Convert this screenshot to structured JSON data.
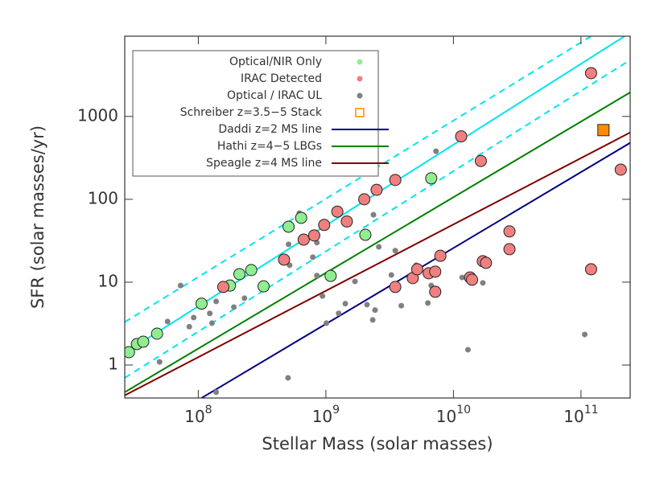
{
  "chart_data": {
    "type": "scatter",
    "xlabel": "Stellar Mass (solar masses)",
    "ylabel": "SFR (solar masses/yr)",
    "xscale": "log",
    "yscale": "log",
    "xlim": [
      26500000,
      243000000000
    ],
    "ylim": [
      0.4,
      9300
    ],
    "xticks": [
      {
        "value": 100000000,
        "label": "10",
        "exponent": "8"
      },
      {
        "value": 1000000000,
        "label": "10",
        "exponent": "9"
      },
      {
        "value": 10000000000,
        "label": "10",
        "exponent": "10"
      },
      {
        "value": 100000000000,
        "label": "10",
        "exponent": "11"
      }
    ],
    "yticks": [
      1,
      10,
      100,
      1000
    ],
    "legend": "upper left",
    "series": [
      {
        "name": "Optical/NIR Only",
        "color": "#90ee90",
        "marker": "circle",
        "size": 7,
        "x": [
          28600000,
          33000000,
          37000000,
          47500000,
          106000000,
          177000000,
          210000000,
          260000000,
          325000000,
          510000000,
          640000000,
          1090000000,
          2040000000,
          6700000000
        ],
        "values": [
          1.43,
          1.79,
          1.91,
          2.39,
          5.5,
          9.1,
          12.5,
          14,
          8.9,
          46.7,
          59.7,
          11.9,
          37.3,
          179
        ]
      },
      {
        "name": "IRAC Detected",
        "color": "#f08080",
        "marker": "circle",
        "size": 7,
        "x": [
          157000000,
          470000000,
          670000000,
          810000000,
          970000000,
          1230000000,
          1460000000,
          2000000000,
          2500000000,
          3500000000,
          3500000000,
          4800000000,
          5200000000,
          6400000000,
          7200000000,
          7200000000,
          7900000000,
          13500000000,
          14000000000,
          11500000000,
          16400000000,
          17000000000,
          18000000000,
          27500000000,
          27500000000,
          120000000000,
          120000000000,
          205000000000
        ],
        "values": [
          8.75,
          18.7,
          32.6,
          36.6,
          49,
          71,
          54,
          100,
          130,
          171,
          8.75,
          11.2,
          14.3,
          12.8,
          7.65,
          13.4,
          20.8,
          11.4,
          10.7,
          575,
          290,
          17.9,
          17.1,
          41,
          25,
          3330,
          14.3,
          228
        ]
      },
      {
        "name": "Optical / IRAC UL",
        "color": "#808080",
        "marker": "dot",
        "size": 3.5,
        "x": [
          49700000,
          57400000,
          72600000,
          85000000,
          92000000,
          123000000,
          128000000,
          138000000,
          190000000,
          230000000,
          510000000,
          520000000,
          620000000,
          790000000,
          850000000,
          850000000,
          940000000,
          1010000000,
          1260000000,
          1420000000,
          1690000000,
          2100000000,
          2330000000,
          2430000000,
          2600000000,
          2360000000,
          3260000000,
          3900000000,
          5100000000,
          6300000000,
          6700000000,
          7300000000,
          11700000000,
          13000000000,
          17000000000,
          107000000000,
          505000000,
          138000000,
          3500000000
        ],
        "values": [
          1.09,
          3.35,
          9.1,
          2.9,
          3.74,
          4.2,
          3.2,
          5.85,
          5.0,
          6.4,
          28.6,
          16,
          68,
          20,
          30,
          12,
          6.8,
          3.2,
          4.2,
          5.5,
          10.2,
          5.35,
          3.5,
          4.6,
          26.7,
          65,
          12.2,
          5.2,
          16,
          5.6,
          9.1,
          380,
          11.4,
          1.53,
          9.8,
          2.34,
          0.7,
          0.47,
          24
        ]
      },
      {
        "name": "Schreiber z=3.5−5 Stack",
        "color": "#ff8c00",
        "marker": "square",
        "size": 7,
        "x": [
          150000000000
        ],
        "values": [
          684
        ]
      }
    ],
    "lines": [
      {
        "color": "#00e5ee",
        "dash": false,
        "x": [
          26500000,
          220000000000
        ],
        "y": [
          1.4,
          9300
        ]
      },
      {
        "color": "#00e5ee",
        "dash": true,
        "x": [
          26500000,
          120000000000
        ],
        "y": [
          3.3,
          9300
        ]
      },
      {
        "color": "#00e5ee",
        "dash": true,
        "x": [
          26500000,
          243000000000
        ],
        "y": [
          0.7,
          4800
        ]
      },
      {
        "name": "Daddi z=2 MS line",
        "color": "#000080",
        "dash": false,
        "x": [
          106000000,
          243000000000
        ],
        "y": [
          0.4,
          480
        ]
      },
      {
        "name": "Hathi z=4−5 LBGs",
        "color": "#008000",
        "dash": false,
        "x": [
          26500000,
          243000000000
        ],
        "y": [
          0.47,
          1950
        ]
      },
      {
        "name": "Speagle z=4 MS line",
        "color": "#800000",
        "dash": false,
        "x": [
          26500000,
          243000000000
        ],
        "y": [
          0.43,
          640
        ]
      }
    ]
  }
}
